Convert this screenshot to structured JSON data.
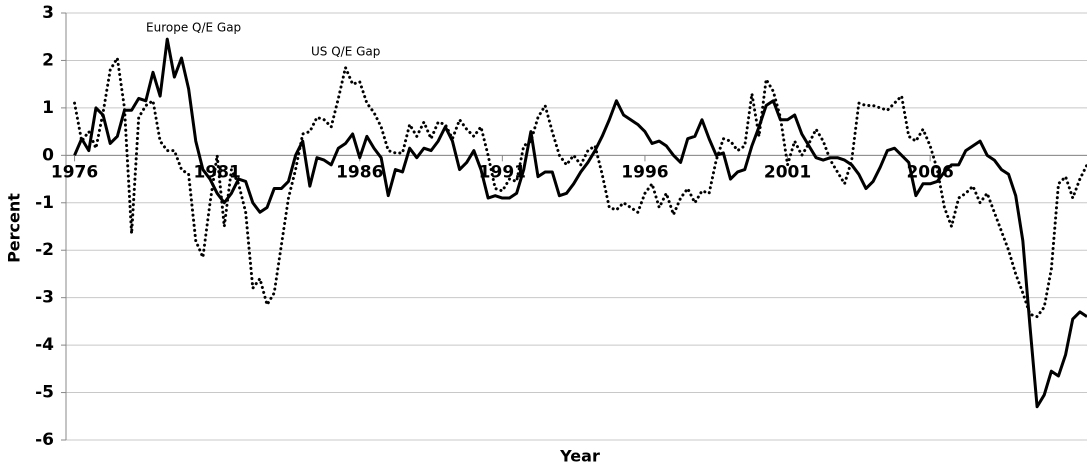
{
  "chart_data": {
    "type": "line",
    "annotations": [
      "Europe Q/E Gap",
      "US Q/E Gap"
    ],
    "xlabel": "Year",
    "ylabel": "Percent",
    "x": [
      1976,
      1976.25,
      1976.5,
      1976.75,
      1977,
      1977.25,
      1977.5,
      1977.75,
      1978,
      1978.25,
      1978.5,
      1978.75,
      1979,
      1979.25,
      1979.5,
      1979.75,
      1980,
      1980.25,
      1980.5,
      1980.75,
      1981,
      1981.25,
      1981.5,
      1981.75,
      1982,
      1982.25,
      1982.5,
      1982.75,
      1983,
      1983.25,
      1983.5,
      1983.75,
      1984,
      1984.25,
      1984.5,
      1984.75,
      1985,
      1985.25,
      1985.5,
      1985.75,
      1986,
      1986.25,
      1986.5,
      1986.75,
      1987,
      1987.25,
      1987.5,
      1987.75,
      1988,
      1988.25,
      1988.5,
      1988.75,
      1989,
      1989.25,
      1989.5,
      1989.75,
      1990,
      1990.25,
      1990.5,
      1990.75,
      1991,
      1991.25,
      1991.5,
      1991.75,
      1992,
      1992.25,
      1992.5,
      1992.75,
      1993,
      1993.25,
      1993.5,
      1993.75,
      1994,
      1994.25,
      1994.5,
      1994.75,
      1995,
      1995.25,
      1995.5,
      1995.75,
      1996,
      1996.25,
      1996.5,
      1996.75,
      1997,
      1997.25,
      1997.5,
      1997.75,
      1998,
      1998.25,
      1998.5,
      1998.75,
      1999,
      1999.25,
      1999.5,
      1999.75,
      2000,
      2000.25,
      2000.5,
      2000.75,
      2001,
      2001.25,
      2001.5,
      2001.75,
      2002,
      2002.25,
      2002.5,
      2002.75,
      2003,
      2003.25,
      2003.5,
      2003.75,
      2004,
      2004.25,
      2004.5,
      2004.75,
      2005,
      2005.25,
      2005.5,
      2005.75,
      2006,
      2006.25,
      2006.5,
      2006.75,
      2007,
      2007.25,
      2007.5,
      2007.75,
      2008,
      2008.25,
      2008.5,
      2008.75,
      2009,
      2009.25,
      2009.5,
      2009.75,
      2010,
      2010.25,
      2010.5,
      2010.75,
      2011,
      2011.25,
      2011.5
    ],
    "series": [
      {
        "name": "Europe Q/E Gap",
        "color": "#000000",
        "style": "solid",
        "values": [
          0.0,
          0.35,
          0.1,
          1.0,
          0.85,
          0.25,
          0.4,
          0.95,
          0.95,
          1.2,
          1.15,
          1.75,
          1.25,
          2.45,
          1.65,
          2.05,
          1.4,
          0.3,
          -0.3,
          -0.5,
          -0.8,
          -1.0,
          -0.8,
          -0.5,
          -0.55,
          -1.0,
          -1.2,
          -1.1,
          -0.7,
          -0.7,
          -0.55,
          0.0,
          0.3,
          -0.65,
          -0.05,
          -0.1,
          -0.2,
          0.15,
          0.25,
          0.45,
          -0.05,
          0.4,
          0.15,
          -0.05,
          -0.85,
          -0.3,
          -0.35,
          0.15,
          -0.05,
          0.15,
          0.1,
          0.3,
          0.6,
          0.3,
          -0.3,
          -0.15,
          0.1,
          -0.3,
          -0.9,
          -0.85,
          -0.9,
          -0.9,
          -0.8,
          -0.3,
          0.5,
          -0.45,
          -0.35,
          -0.35,
          -0.85,
          -0.8,
          -0.6,
          -0.35,
          -0.15,
          0.1,
          0.4,
          0.75,
          1.15,
          0.85,
          0.75,
          0.65,
          0.5,
          0.25,
          0.3,
          0.2,
          0.0,
          -0.15,
          0.35,
          0.4,
          0.75,
          0.35,
          0.0,
          0.05,
          -0.5,
          -0.35,
          -0.3,
          0.2,
          0.6,
          1.05,
          1.15,
          0.75,
          0.75,
          0.85,
          0.45,
          0.2,
          -0.05,
          -0.1,
          -0.05,
          -0.05,
          -0.1,
          -0.2,
          -0.4,
          -0.7,
          -0.55,
          -0.25,
          0.1,
          0.15,
          0.0,
          -0.15,
          -0.85,
          -0.6,
          -0.6,
          -0.55,
          -0.35,
          -0.2,
          -0.2,
          0.1,
          0.2,
          0.3,
          0.0,
          -0.1,
          -0.3,
          -0.4,
          -0.85,
          -1.8,
          -3.6,
          -5.3,
          -5.05,
          -4.55,
          -4.65,
          -4.2,
          -3.45,
          -3.3,
          -3.4
        ]
      },
      {
        "name": "US Q/E Gap",
        "color": "#000000",
        "style": "dotted",
        "values": [
          1.1,
          0.3,
          0.5,
          0.15,
          0.9,
          1.8,
          2.05,
          1.0,
          -1.65,
          0.8,
          1.05,
          1.15,
          0.3,
          0.1,
          0.1,
          -0.3,
          -0.4,
          -1.8,
          -2.15,
          -1.0,
          0.0,
          -1.5,
          -0.3,
          -0.6,
          -1.2,
          -2.8,
          -2.6,
          -3.15,
          -2.9,
          -1.9,
          -0.9,
          -0.3,
          0.45,
          0.5,
          0.8,
          0.75,
          0.6,
          1.2,
          1.85,
          1.5,
          1.55,
          1.1,
          0.9,
          0.6,
          0.1,
          0.05,
          0.05,
          0.65,
          0.4,
          0.7,
          0.35,
          0.7,
          0.65,
          0.35,
          0.75,
          0.55,
          0.4,
          0.6,
          0.0,
          -0.7,
          -0.75,
          -0.5,
          -0.55,
          0.2,
          0.3,
          0.8,
          1.05,
          0.5,
          0.0,
          -0.2,
          0.0,
          -0.2,
          0.1,
          0.2,
          -0.4,
          -1.1,
          -1.15,
          -1.0,
          -1.1,
          -1.2,
          -0.8,
          -0.6,
          -1.1,
          -0.8,
          -1.25,
          -0.9,
          -0.7,
          -1.0,
          -0.75,
          -0.8,
          -0.1,
          0.35,
          0.3,
          0.1,
          0.2,
          1.3,
          0.4,
          1.6,
          1.35,
          0.8,
          -0.2,
          0.3,
          0.0,
          0.25,
          0.55,
          0.3,
          -0.1,
          -0.35,
          -0.6,
          -0.1,
          1.1,
          1.05,
          1.05,
          1.0,
          0.95,
          1.1,
          1.25,
          0.4,
          0.3,
          0.55,
          0.2,
          -0.3,
          -1.1,
          -1.5,
          -0.9,
          -0.8,
          -0.65,
          -1.0,
          -0.8,
          -1.2,
          -1.6,
          -2.0,
          -2.5,
          -2.9,
          -3.35,
          -3.4,
          -3.2,
          -2.4,
          -0.6,
          -0.45,
          -0.9,
          -0.5,
          -0.2
        ]
      }
    ],
    "xlim": [
      1975.7,
      2011.5
    ],
    "xticks": [
      1976,
      1981,
      1986,
      1991,
      1996,
      2001,
      2006
    ],
    "ylim": [
      -6,
      3
    ],
    "yticks": [
      -6,
      -5,
      -4,
      -3,
      -2,
      -1,
      0,
      1,
      2,
      3
    ],
    "grid": true
  }
}
